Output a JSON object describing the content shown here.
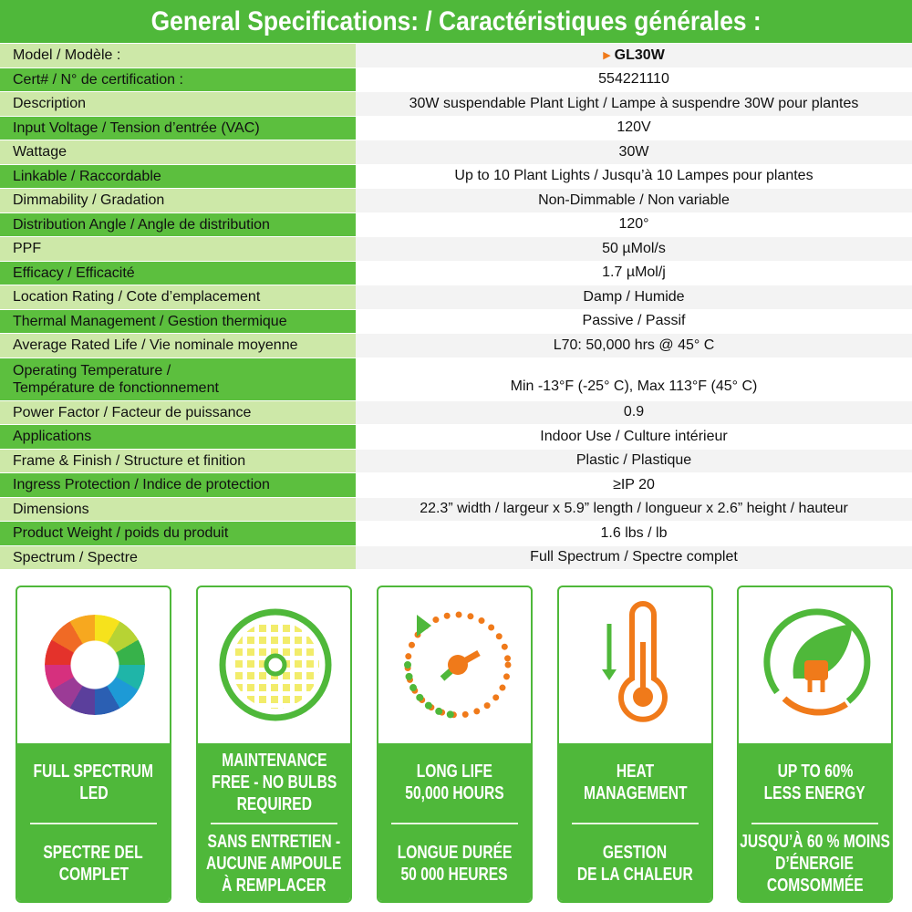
{
  "header": {
    "title": "General Specifications: / Caractéristiques générales :"
  },
  "table": {
    "rows": [
      {
        "label": "Model / Modèle :",
        "value": "GL30W"
      },
      {
        "label": "Cert# / N° de certification :",
        "value": "554221110"
      },
      {
        "label": "Description",
        "value": "30W suspendable Plant Light / Lampe à suspendre 30W pour plantes"
      },
      {
        "label": "Input Voltage / Tension d’entrée (VAC)",
        "value": "120V"
      },
      {
        "label": "Wattage",
        "value": "30W"
      },
      {
        "label": "Linkable / Raccordable",
        "value": "Up to 10 Plant Lights / Jusqu’à 10 Lampes pour plantes"
      },
      {
        "label": "Dimmability / Gradation",
        "value": "Non-Dimmable / Non variable"
      },
      {
        "label": "Distribution Angle / Angle de distribution",
        "value": "120°"
      },
      {
        "label": "PPF",
        "value": "50 µMol/s"
      },
      {
        "label": "Efficacy / Efficacité",
        "value": "1.7 µMol/j"
      },
      {
        "label": "Location Rating / Cote d’emplacement",
        "value": "Damp / Humide"
      },
      {
        "label": "Thermal Management / Gestion thermique",
        "value": "Passive / Passif"
      },
      {
        "label": "Average Rated Life / Vie nominale moyenne",
        "value": "L70: 50,000 hrs @ 45° C"
      },
      {
        "label": [
          "Operating Temperature /",
          "Température de fonctionnement"
        ],
        "value": "Min -13°F (-25° C),  Max 113°F (45° C)"
      },
      {
        "label": "Power Factor / Facteur de puissance",
        "value": "0.9"
      },
      {
        "label": "Applications",
        "value": "Indoor Use / Culture intérieur"
      },
      {
        "label": "Frame & Finish / Structure et finition",
        "value": "Plastic / Plastique"
      },
      {
        "label": "Ingress Protection / Indice de protection",
        "value": "≥IP 20"
      },
      {
        "label": "Dimensions",
        "value": "22.3” width / largeur x 5.9” length / longueur x 2.6” height / hauteur"
      },
      {
        "label": "Product Weight / poids du produit",
        "value": "1.6 lbs / lb"
      },
      {
        "label": "Spectrum / Spectre",
        "value": "Full Spectrum / Spectre complet"
      }
    ]
  },
  "features": [
    {
      "en": [
        "FULL SPECTRUM",
        "LED"
      ],
      "fr": [
        "SPECTRE DEL",
        "COMPLET"
      ]
    },
    {
      "en": [
        "MAINTENANCE",
        "FREE - NO BULBS",
        "REQUIRED"
      ],
      "fr": [
        "SANS ENTRETIEN -",
        "AUCUNE AMPOULE",
        "À REMPLACER"
      ]
    },
    {
      "en": [
        "LONG LIFE",
        "50,000 HOURS"
      ],
      "fr": [
        "LONGUE DURÉE",
        "50 000 HEURES"
      ]
    },
    {
      "en": [
        "HEAT",
        "MANAGEMENT"
      ],
      "fr": [
        "GESTION",
        "DE LA CHALEUR"
      ]
    },
    {
      "en": [
        "UP TO 60%",
        "LESS ENERGY"
      ],
      "fr": [
        "JUSQU’À 60 % MOINS",
        "D’ÉNERGIE",
        "COMSOMMÉE"
      ]
    }
  ]
}
